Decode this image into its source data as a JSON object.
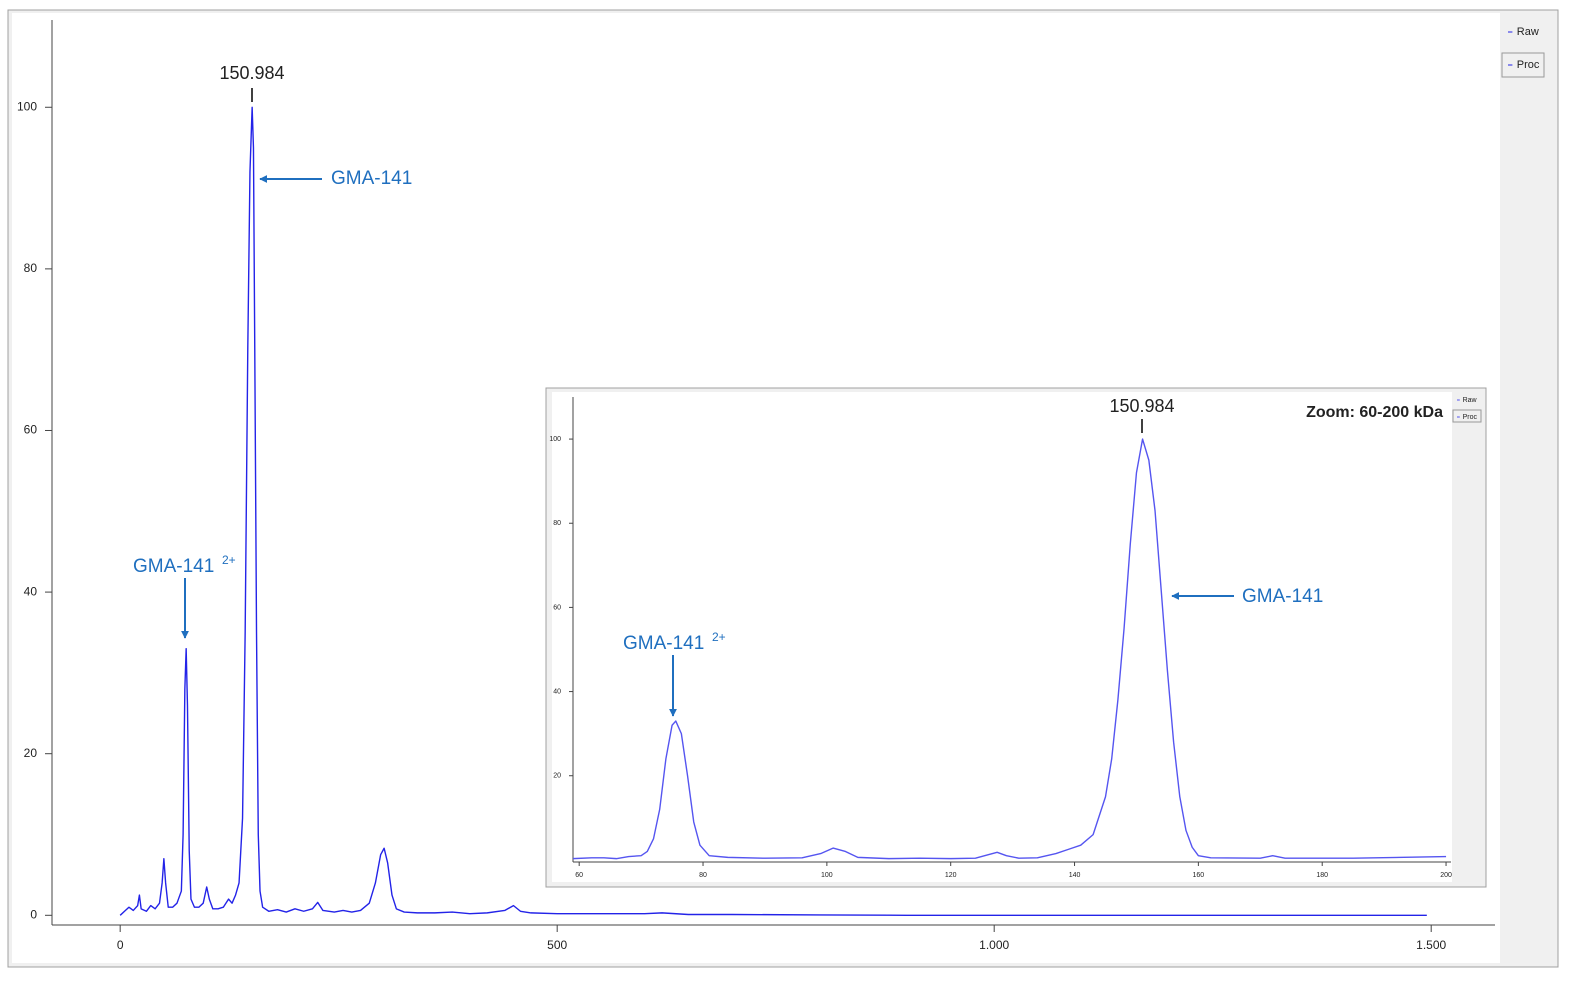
{
  "chart_data": [
    {
      "type": "line",
      "legend": [
        "Raw",
        "Proc"
      ],
      "x": [
        0,
        5,
        10,
        15,
        20,
        22,
        24,
        30,
        35,
        40,
        45,
        48,
        50,
        52,
        55,
        60,
        65,
        70,
        72,
        74,
        75.5,
        77,
        79,
        81,
        85,
        90,
        95,
        99,
        102,
        106,
        112,
        118,
        124,
        128,
        132,
        136,
        140,
        143,
        146,
        148.5,
        150.984,
        152.5,
        154,
        156,
        158,
        160,
        163,
        170,
        180,
        190,
        200,
        210,
        220,
        226,
        232,
        245,
        255,
        265,
        275,
        285,
        292,
        298,
        302,
        306,
        311,
        316,
        325,
        340,
        360,
        380,
        400,
        420,
        440,
        450,
        458,
        470,
        500,
        550,
        600,
        620,
        650,
        700,
        800,
        900,
        1000,
        1200,
        1495
      ],
      "series": [
        {
          "color": "#2323e8",
          "values": [
            0,
            0.5,
            1,
            0.6,
            1.2,
            2.5,
            0.8,
            0.5,
            1.2,
            0.8,
            1.5,
            4,
            7,
            4,
            1,
            1,
            1.5,
            3,
            10,
            28,
            33,
            26,
            8,
            2,
            1,
            1,
            1.5,
            3.5,
            2,
            0.8,
            0.8,
            1,
            2,
            1.5,
            2.5,
            4,
            12,
            35,
            70,
            92,
            100,
            95,
            70,
            35,
            10,
            3,
            1,
            0.5,
            0.7,
            0.4,
            0.8,
            0.5,
            0.8,
            1.6,
            0.6,
            0.4,
            0.6,
            0.4,
            0.6,
            1.5,
            4,
            7.5,
            8.3,
            6.5,
            2.5,
            0.8,
            0.4,
            0.3,
            0.3,
            0.4,
            0.2,
            0.3,
            0.6,
            1.2,
            0.5,
            0.3,
            0.2,
            0.2,
            0.2,
            0.3,
            0.1,
            0.1,
            0.05,
            0,
            0,
            0,
            0
          ]
        }
      ],
      "xlim": [
        -78,
        1573
      ],
      "xticks": [
        0,
        500,
        {
          "value": 1000,
          "label": "1.000"
        },
        {
          "value": 1500,
          "label": "1.500"
        }
      ],
      "ylim": [
        -1.2,
        110.8
      ],
      "yticks": [
        0,
        20,
        40,
        60,
        80,
        100
      ],
      "annotations": [
        {
          "text": "150.984"
        },
        {
          "text": "GMA-141"
        },
        {
          "text": "GMA-141",
          "sup": "2+"
        }
      ]
    },
    {
      "type": "line",
      "title": "Zoom: 60-200 kDa",
      "legend": [
        "Raw",
        "Proc"
      ],
      "x": [
        59,
        62,
        64,
        66,
        68,
        70,
        71,
        72,
        73,
        74,
        75,
        75.6,
        76.5,
        77.5,
        78.5,
        79.5,
        81,
        84,
        90,
        96,
        99,
        101,
        103,
        105,
        110,
        115,
        120,
        124,
        126,
        127.5,
        129,
        131,
        134,
        137,
        139,
        141,
        143,
        145,
        146,
        147,
        148,
        149,
        150,
        150.984,
        152,
        153,
        154,
        155,
        156,
        157,
        158,
        159,
        160,
        162,
        170,
        172,
        174,
        185,
        200
      ],
      "series": [
        {
          "color": "#5555f0",
          "values": [
            0.3,
            0.5,
            0.5,
            0.3,
            0.8,
            1,
            2,
            5,
            12,
            24,
            32,
            33,
            30,
            20,
            9,
            3.5,
            1,
            0.6,
            0.4,
            0.5,
            1.5,
            2.8,
            2,
            0.6,
            0.3,
            0.4,
            0.3,
            0.4,
            1.2,
            1.8,
            1,
            0.4,
            0.5,
            1.5,
            2.5,
            3.5,
            6,
            15,
            24,
            38,
            55,
            75,
            92,
            100,
            95,
            83,
            64,
            45,
            28,
            15,
            7,
            3,
            1,
            0.5,
            0.4,
            1,
            0.4,
            0.4,
            0.8
          ]
        }
      ],
      "xlim": [
        59,
        200.8
      ],
      "xticks": [
        60,
        80,
        100,
        120,
        140,
        160,
        180,
        200
      ],
      "ylim": [
        -0.5,
        110
      ],
      "yticks": [
        20,
        40,
        60,
        80,
        100
      ],
      "annotations": [
        {
          "text": "150.984"
        },
        {
          "text": "GMA-141"
        },
        {
          "text": "GMA-141",
          "sup": "2+"
        }
      ]
    }
  ]
}
